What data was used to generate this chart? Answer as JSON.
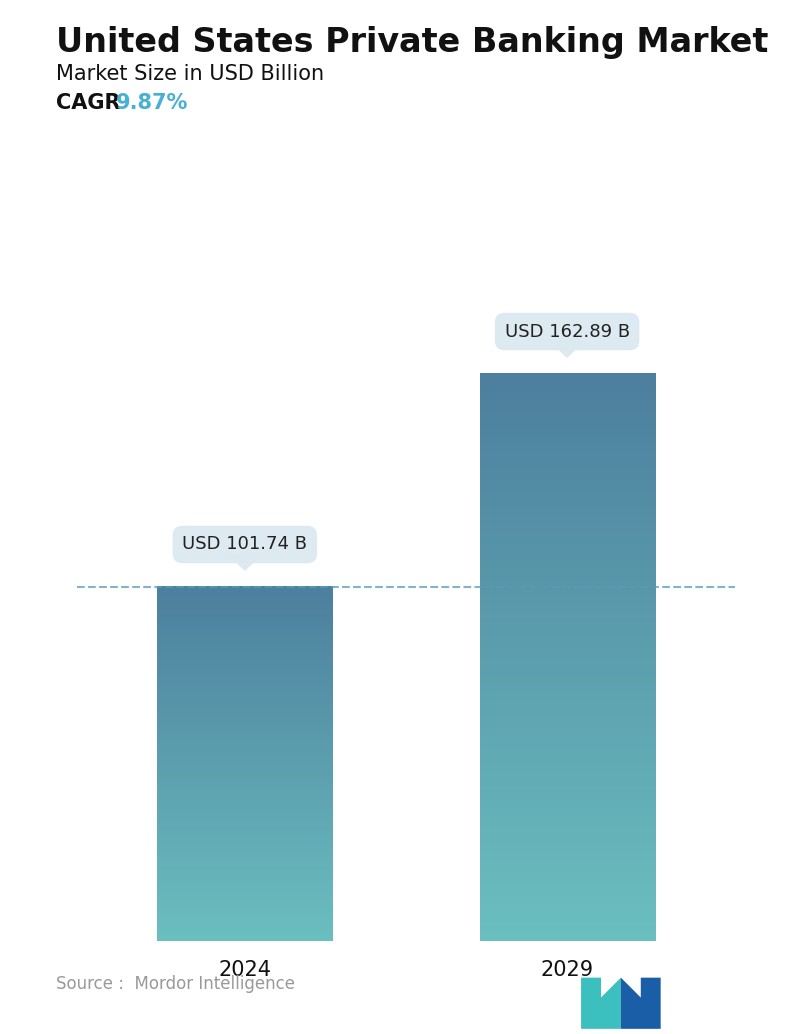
{
  "title": "United States Private Banking Market",
  "subtitle": "Market Size in USD Billion",
  "cagr_label": "CAGR ",
  "cagr_value": "9.87%",
  "cagr_color": "#4aafd4",
  "categories": [
    "2024",
    "2029"
  ],
  "values": [
    101.74,
    162.89
  ],
  "bar_labels": [
    "USD 101.74 B",
    "USD 162.89 B"
  ],
  "bar_color_top": "#4d7f9e",
  "bar_color_bottom": "#6bbfbf",
  "dashed_line_color": "#5a9ab8",
  "tooltip_bg": "#dce9f0",
  "tooltip_text": "#222222",
  "source_text": "Source :  Mordor Intelligence",
  "source_color": "#999999",
  "background_color": "#ffffff",
  "title_fontsize": 24,
  "subtitle_fontsize": 15,
  "cagr_fontsize": 15,
  "bar_label_fontsize": 13,
  "tick_fontsize": 15,
  "source_fontsize": 12,
  "ylim": [
    0,
    190
  ],
  "bar_positions": [
    0.27,
    0.73
  ],
  "bar_width": 0.25
}
